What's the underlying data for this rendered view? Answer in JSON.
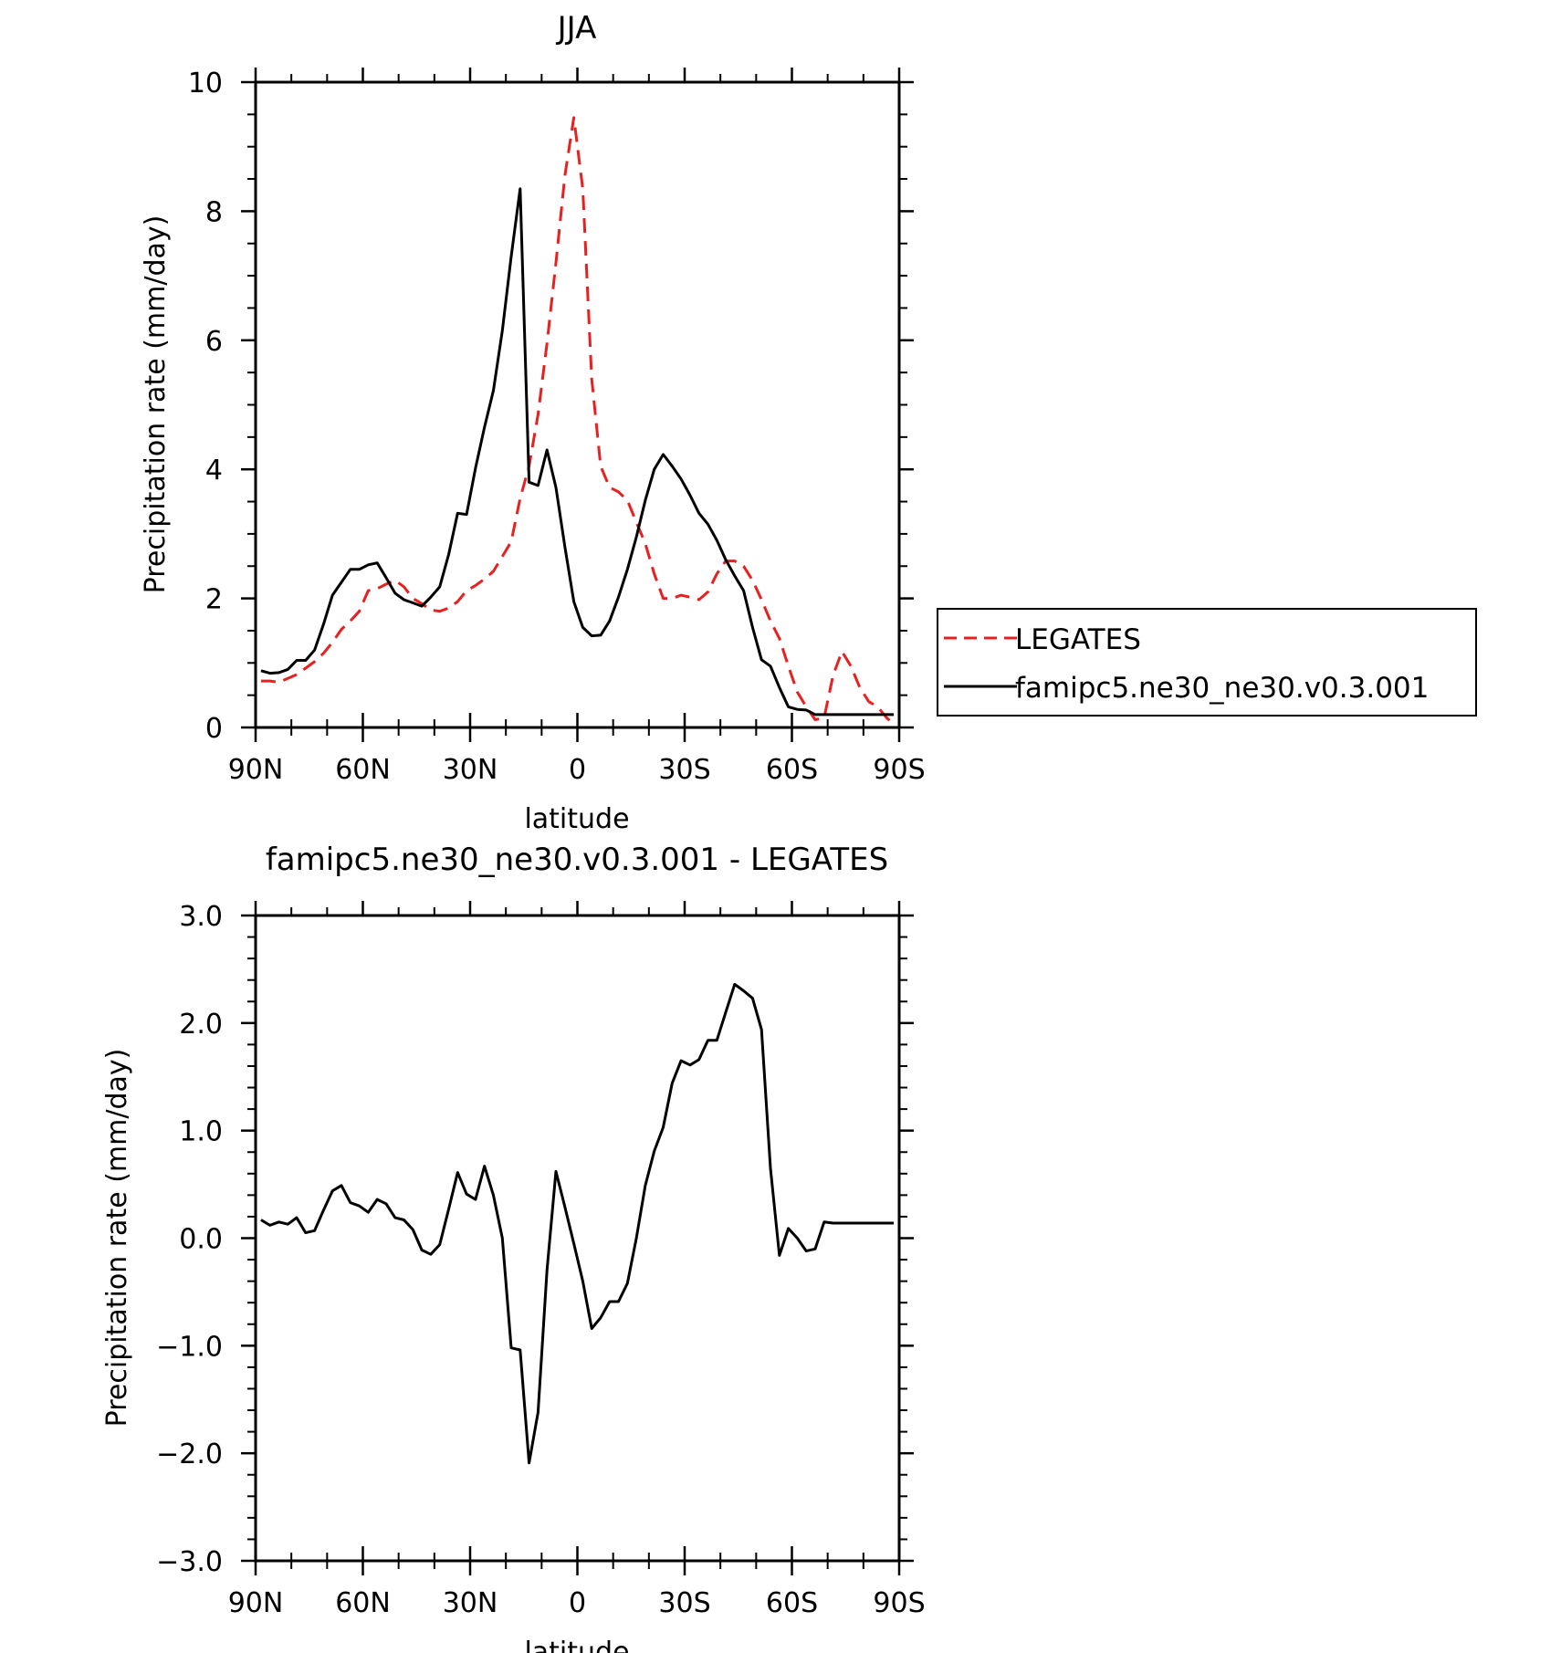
{
  "chart_data": [
    {
      "type": "line",
      "title": "JJA",
      "xlabel": "latitude",
      "ylabel": "Precipitation rate (mm/day)",
      "xlim": [
        90,
        -90
      ],
      "ylim": [
        0,
        10
      ],
      "xticks": [
        90,
        60,
        30,
        0,
        -30,
        -60,
        -90
      ],
      "xtick_labels": [
        "90N",
        "60N",
        "30N",
        "0",
        "30S",
        "60S",
        "90S"
      ],
      "yticks": [
        0,
        2,
        4,
        6,
        8,
        10
      ],
      "ytick_labels": [
        "0",
        "2",
        "4",
        "6",
        "8",
        "10"
      ],
      "legend_position": "right",
      "series": [
        {
          "name": "LEGATES",
          "color": "#e8201f",
          "dash": "dashed",
          "x": [
            88.5,
            86,
            83.5,
            81,
            78.5,
            76,
            73.5,
            71,
            68.5,
            66,
            63.5,
            61,
            58.5,
            56,
            53.5,
            51,
            48.5,
            46,
            43.5,
            41,
            38.5,
            36,
            33.5,
            31,
            28.5,
            26,
            23.5,
            21,
            18.5,
            16,
            13.5,
            11,
            8.5,
            6,
            3.5,
            1,
            -1.5,
            -4,
            -6.5,
            -9,
            -11.5,
            -14,
            -16.5,
            -19,
            -21.5,
            -24,
            -26.5,
            -29,
            -31.5,
            -34,
            -36.5,
            -39,
            -41.5,
            -44,
            -46.5,
            -49,
            -51.5,
            -54,
            -56.5,
            -59,
            -61.5,
            -64,
            -66.5,
            -69,
            -71.5,
            -74,
            -76.5,
            -79,
            -81.5,
            -84,
            -86.5,
            -88.5
          ],
          "y": [
            0.72,
            0.72,
            0.7,
            0.76,
            0.82,
            0.92,
            1.02,
            1.15,
            1.32,
            1.52,
            1.65,
            1.8,
            2.12,
            2.15,
            2.22,
            2.28,
            2.18,
            2.0,
            1.92,
            1.82,
            1.8,
            1.85,
            1.95,
            2.12,
            2.2,
            2.3,
            2.42,
            2.65,
            2.88,
            3.55,
            4.05,
            4.85,
            5.95,
            7.2,
            8.55,
            9.45,
            8.35,
            5.4,
            4.05,
            3.72,
            3.65,
            3.52,
            3.18,
            2.85,
            2.38,
            2.0,
            2.0,
            2.05,
            2.02,
            1.98,
            2.1,
            2.38,
            2.58,
            2.58,
            2.5,
            2.28,
            1.98,
            1.65,
            1.38,
            0.95,
            0.55,
            0.32,
            0.12,
            0.15,
            0.8,
            1.18,
            0.95,
            0.62,
            0.4,
            0.32,
            0.15,
            0.05
          ]
        },
        {
          "name": "famipc5.ne30_ne30.v0.3.001",
          "color": "#000000",
          "dash": "solid",
          "x": [
            88.5,
            86,
            83.5,
            81,
            78.5,
            76,
            73.5,
            71,
            68.5,
            66,
            63.5,
            61,
            58.5,
            56,
            53.5,
            51,
            48.5,
            46,
            43.5,
            41,
            38.5,
            36,
            33.5,
            31,
            28.5,
            26,
            23.5,
            21,
            18.5,
            16,
            13.5,
            11,
            8.5,
            6,
            3.5,
            1,
            -1.5,
            -4,
            -6.5,
            -9,
            -11.5,
            -14,
            -16.5,
            -19,
            -21.5,
            -24,
            -26.5,
            -29,
            -31.5,
            -34,
            -36.5,
            -39,
            -41.5,
            -44,
            -46.5,
            -49,
            -51.5,
            -54,
            -56.5,
            -59,
            -61.5,
            -64,
            -66.5,
            -69,
            -71.5,
            -74,
            -76.5,
            -79,
            -81.5,
            -84,
            -86.5,
            -88.5
          ],
          "y": [
            0.88,
            0.84,
            0.85,
            0.9,
            1.04,
            1.04,
            1.2,
            1.6,
            2.05,
            2.25,
            2.45,
            2.45,
            2.52,
            2.55,
            2.32,
            2.08,
            1.98,
            1.93,
            1.88,
            2.02,
            2.18,
            2.68,
            3.32,
            3.3,
            4.02,
            4.65,
            5.22,
            6.15,
            7.3,
            8.35,
            3.8,
            3.75,
            4.3,
            3.72,
            2.8,
            1.95,
            1.55,
            1.42,
            1.43,
            1.65,
            2.02,
            2.45,
            2.95,
            3.52,
            4.0,
            4.23,
            4.05,
            3.85,
            3.6,
            3.32,
            3.15,
            2.9,
            2.6,
            2.35,
            2.12,
            1.55,
            1.05,
            0.95,
            0.62,
            0.32,
            0.28,
            0.27,
            0.2,
            0.2,
            0.2,
            0.2,
            0.2,
            0.2,
            0.2,
            0.2,
            0.2,
            0.2
          ]
        }
      ]
    },
    {
      "type": "line",
      "title": "famipc5.ne30_ne30.v0.3.001 - LEGATES",
      "xlabel": "latitude",
      "ylabel": "Precipitation rate (mm/day)",
      "xlim": [
        90,
        -90
      ],
      "ylim": [
        -3,
        3
      ],
      "xticks": [
        90,
        60,
        30,
        0,
        -30,
        -60,
        -90
      ],
      "xtick_labels": [
        "90N",
        "60N",
        "30N",
        "0",
        "30S",
        "60S",
        "90S"
      ],
      "yticks": [
        -3,
        -2,
        -1,
        0,
        1,
        2,
        3
      ],
      "ytick_labels": [
        "−3.0",
        "−2.0",
        "−1.0",
        "0.0",
        "1.0",
        "2.0",
        "3.0"
      ],
      "series": [
        {
          "color": "#000000",
          "dash": "solid",
          "x": [
            88.5,
            86,
            83.5,
            81,
            78.5,
            76,
            73.5,
            71,
            68.5,
            66,
            63.5,
            61,
            58.5,
            56,
            53.5,
            51,
            48.5,
            46,
            43.5,
            41,
            38.5,
            36,
            33.5,
            31,
            28.5,
            26,
            23.5,
            21,
            18.5,
            16,
            13.5,
            11,
            8.5,
            6,
            3.5,
            1,
            -1.5,
            -4,
            -6.5,
            -9,
            -11.5,
            -14,
            -16.5,
            -19,
            -21.5,
            -24,
            -26.5,
            -29,
            -31.5,
            -34,
            -36.5,
            -39,
            -41.5,
            -44,
            -46.5,
            -49,
            -51.5,
            -54,
            -56.5,
            -59,
            -61.5,
            -64,
            -66.5,
            -69,
            -71.5,
            -74,
            -76.5,
            -79,
            -81.5,
            -84,
            -86.5,
            -88.5
          ],
          "y": [
            0.17,
            0.12,
            0.15,
            0.13,
            0.19,
            0.05,
            0.07,
            0.26,
            0.44,
            0.49,
            0.33,
            0.3,
            0.24,
            0.36,
            0.32,
            0.19,
            0.17,
            0.08,
            -0.11,
            -0.15,
            -0.06,
            0.27,
            0.61,
            0.41,
            0.36,
            0.67,
            0.4,
            0.0,
            -1.02,
            -1.04,
            -2.09,
            -1.62,
            -0.3,
            0.62,
            0.29,
            -0.05,
            -0.4,
            -0.84,
            -0.74,
            -0.59,
            -0.59,
            -0.42,
            0.0,
            0.49,
            0.81,
            1.03,
            1.44,
            1.65,
            1.61,
            1.66,
            1.84,
            1.84,
            2.1,
            2.36,
            2.3,
            2.23,
            1.94,
            0.65,
            -0.16,
            0.09,
            0.0,
            -0.12,
            -0.1,
            0.15,
            0.14,
            0.14,
            0.14,
            0.14,
            0.14,
            0.14,
            0.14,
            0.14
          ]
        }
      ]
    }
  ]
}
